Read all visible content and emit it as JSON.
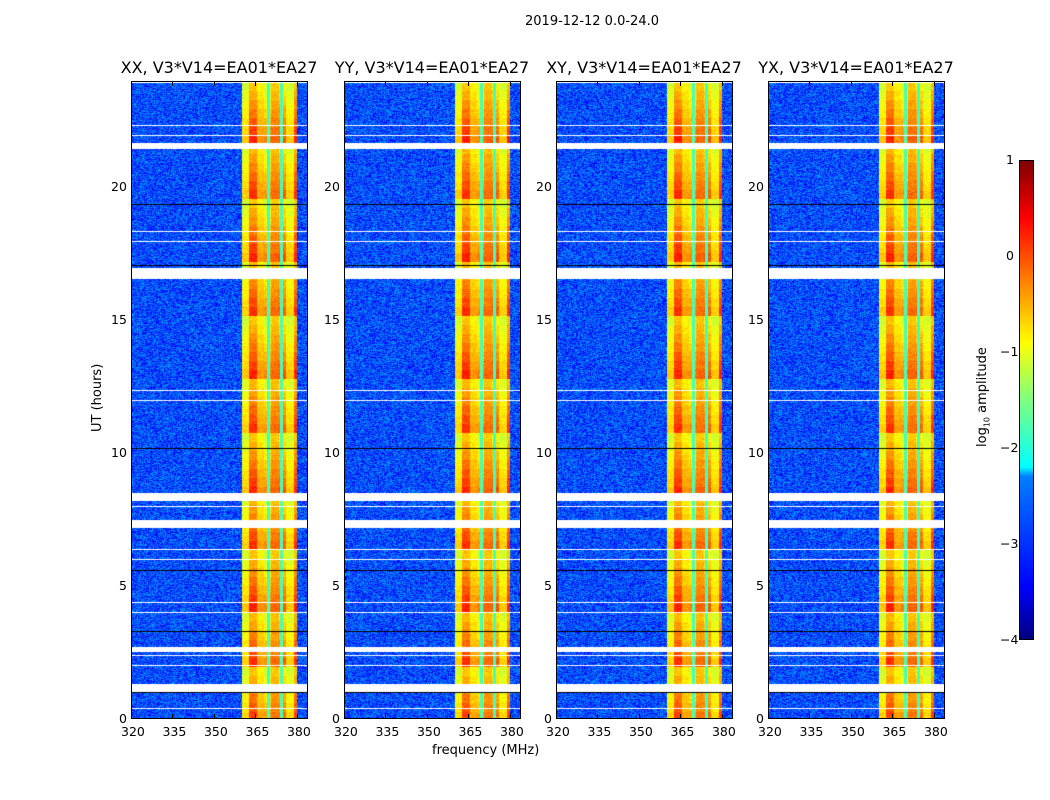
{
  "chart_data": {
    "type": "heatmap",
    "suptitle": "2019-12-12 0.0-24.0",
    "xlabel": "frequency (MHz)",
    "ylabel": "UT (hours)",
    "xlim": [
      320,
      384
    ],
    "ylim": [
      0,
      24
    ],
    "xticks": [
      320,
      335,
      350,
      365,
      380
    ],
    "yticks": [
      0,
      5,
      10,
      15,
      20
    ],
    "panels": [
      {
        "title": "XX, V3*V14=EA01*EA27"
      },
      {
        "title": "YY, V3*V14=EA01*EA27"
      },
      {
        "title": "XY, V3*V14=EA01*EA27"
      },
      {
        "title": "YX, V3*V14=EA01*EA27"
      }
    ],
    "rfi_band_mhz": [
      360,
      380
    ],
    "background_log10_amplitude": -3,
    "band_log10_amplitude": -0.7,
    "flagged_hours": [
      [
        1.0,
        1.3
      ],
      [
        2.5,
        2.7
      ],
      [
        7.2,
        7.5
      ],
      [
        8.2,
        8.5
      ],
      [
        16.6,
        17.0
      ],
      [
        21.5,
        21.7
      ]
    ],
    "colorbar": {
      "label": "log10 amplitude",
      "label_main": "log",
      "label_sub": "10",
      "label_tail": " amplitude",
      "range": [
        -4,
        1
      ],
      "ticks": [
        "1",
        "0",
        "−1",
        "−2",
        "−3",
        "−4"
      ],
      "colormap": "jet"
    }
  }
}
